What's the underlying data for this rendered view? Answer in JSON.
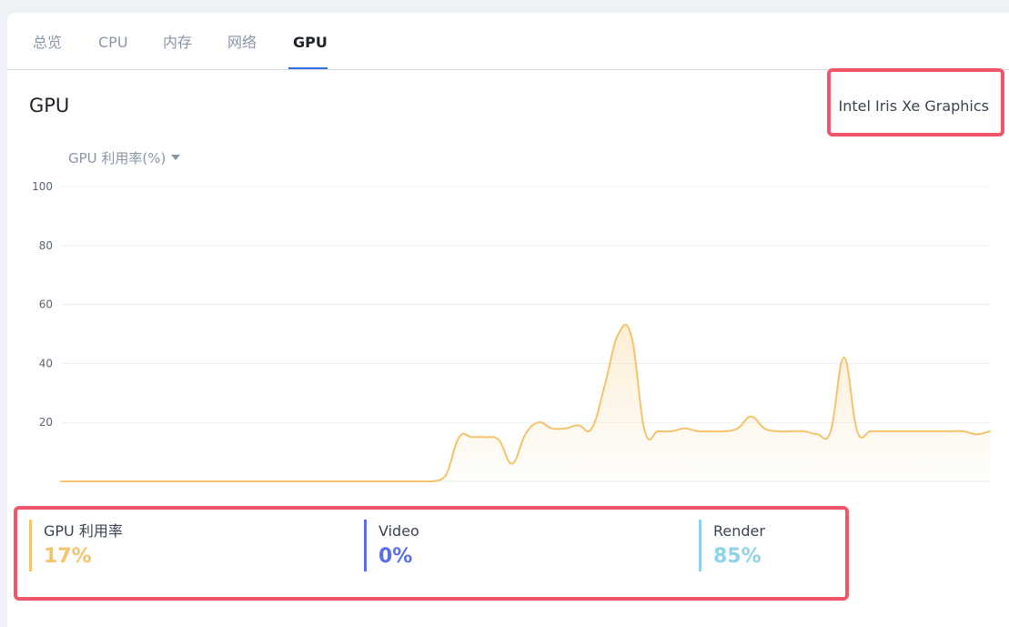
{
  "tabs": [
    {
      "label": "总览",
      "active": false
    },
    {
      "label": "CPU",
      "active": false
    },
    {
      "label": "内存",
      "active": false
    },
    {
      "label": "网络",
      "active": false
    },
    {
      "label": "GPU",
      "active": true
    }
  ],
  "section": {
    "title": "GPU",
    "device_name": "Intel Iris Xe Graphics"
  },
  "metric_selector": {
    "label": "GPU 利用率(%)",
    "icon": "caret-down-icon"
  },
  "colors": {
    "accent": "#2f6fe4",
    "line": "#f5c36b",
    "highlight": "#f0566a",
    "gpu": "#f5c36b",
    "video": "#5b6ee8",
    "render": "#8fd3e8"
  },
  "chart_data": {
    "type": "area",
    "ylim": [
      0,
      100
    ],
    "yticks": [
      "20",
      "40",
      "60",
      "80",
      "100"
    ],
    "grid": true,
    "xlabel": "",
    "ylabel": "",
    "values": [
      0,
      0,
      0,
      0,
      0,
      0,
      0,
      0,
      0,
      0,
      0,
      0,
      0,
      0,
      0,
      0,
      0,
      0,
      0,
      0,
      0,
      0,
      0,
      0,
      0,
      0,
      0,
      0,
      0,
      2,
      15,
      15,
      15,
      14,
      6,
      16,
      20,
      18,
      18,
      19,
      18,
      33,
      50,
      49,
      17,
      17,
      17,
      18,
      17,
      17,
      17,
      18,
      22,
      18,
      17,
      17,
      17,
      16,
      17,
      42,
      17,
      17,
      17,
      17,
      17,
      17,
      17,
      17,
      17,
      16,
      17
    ]
  },
  "stats": [
    {
      "label": "GPU 利用率",
      "value": "17%",
      "color": "#f5c36b"
    },
    {
      "label": "Video",
      "value": "0%",
      "color": "#5b6ee8"
    },
    {
      "label": "Render",
      "value": "85%",
      "color": "#8fd3e8"
    }
  ]
}
